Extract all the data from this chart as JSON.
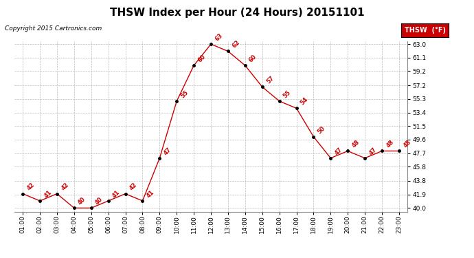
{
  "title": "THSW Index per Hour (24 Hours) 20151101",
  "copyright": "Copyright 2015 Cartronics.com",
  "legend_label": "THSW  (°F)",
  "hours": [
    1,
    2,
    3,
    4,
    5,
    6,
    7,
    8,
    9,
    10,
    11,
    12,
    13,
    14,
    15,
    16,
    17,
    18,
    19,
    20,
    21,
    22,
    23
  ],
  "values": [
    42,
    41,
    42,
    40,
    40,
    41,
    42,
    41,
    47,
    55,
    60,
    63,
    62,
    60,
    57,
    55,
    54,
    50,
    47,
    48,
    47,
    48,
    48
  ],
  "x_labels": [
    "01:00",
    "02:00",
    "03:00",
    "04:00",
    "05:00",
    "06:00",
    "07:00",
    "08:00",
    "09:00",
    "10:00",
    "11:00",
    "12:00",
    "13:00",
    "14:00",
    "15:00",
    "16:00",
    "17:00",
    "18:00",
    "19:00",
    "20:00",
    "21:00",
    "22:00",
    "23:00"
  ],
  "y_ticks": [
    40.0,
    41.9,
    43.8,
    45.8,
    47.7,
    49.6,
    51.5,
    53.4,
    55.3,
    57.2,
    59.2,
    61.1,
    63.0
  ],
  "y_min": 39.5,
  "y_max": 63.4,
  "line_color": "#cc0000",
  "marker_color": "black",
  "label_color": "#cc0000",
  "background_color": "white",
  "grid_color": "#bbbbbb",
  "title_fontsize": 11,
  "copyright_fontsize": 6.5,
  "label_fontsize": 6,
  "tick_fontsize": 6.5,
  "legend_bg": "#cc0000",
  "legend_fg": "white",
  "legend_fontsize": 7
}
